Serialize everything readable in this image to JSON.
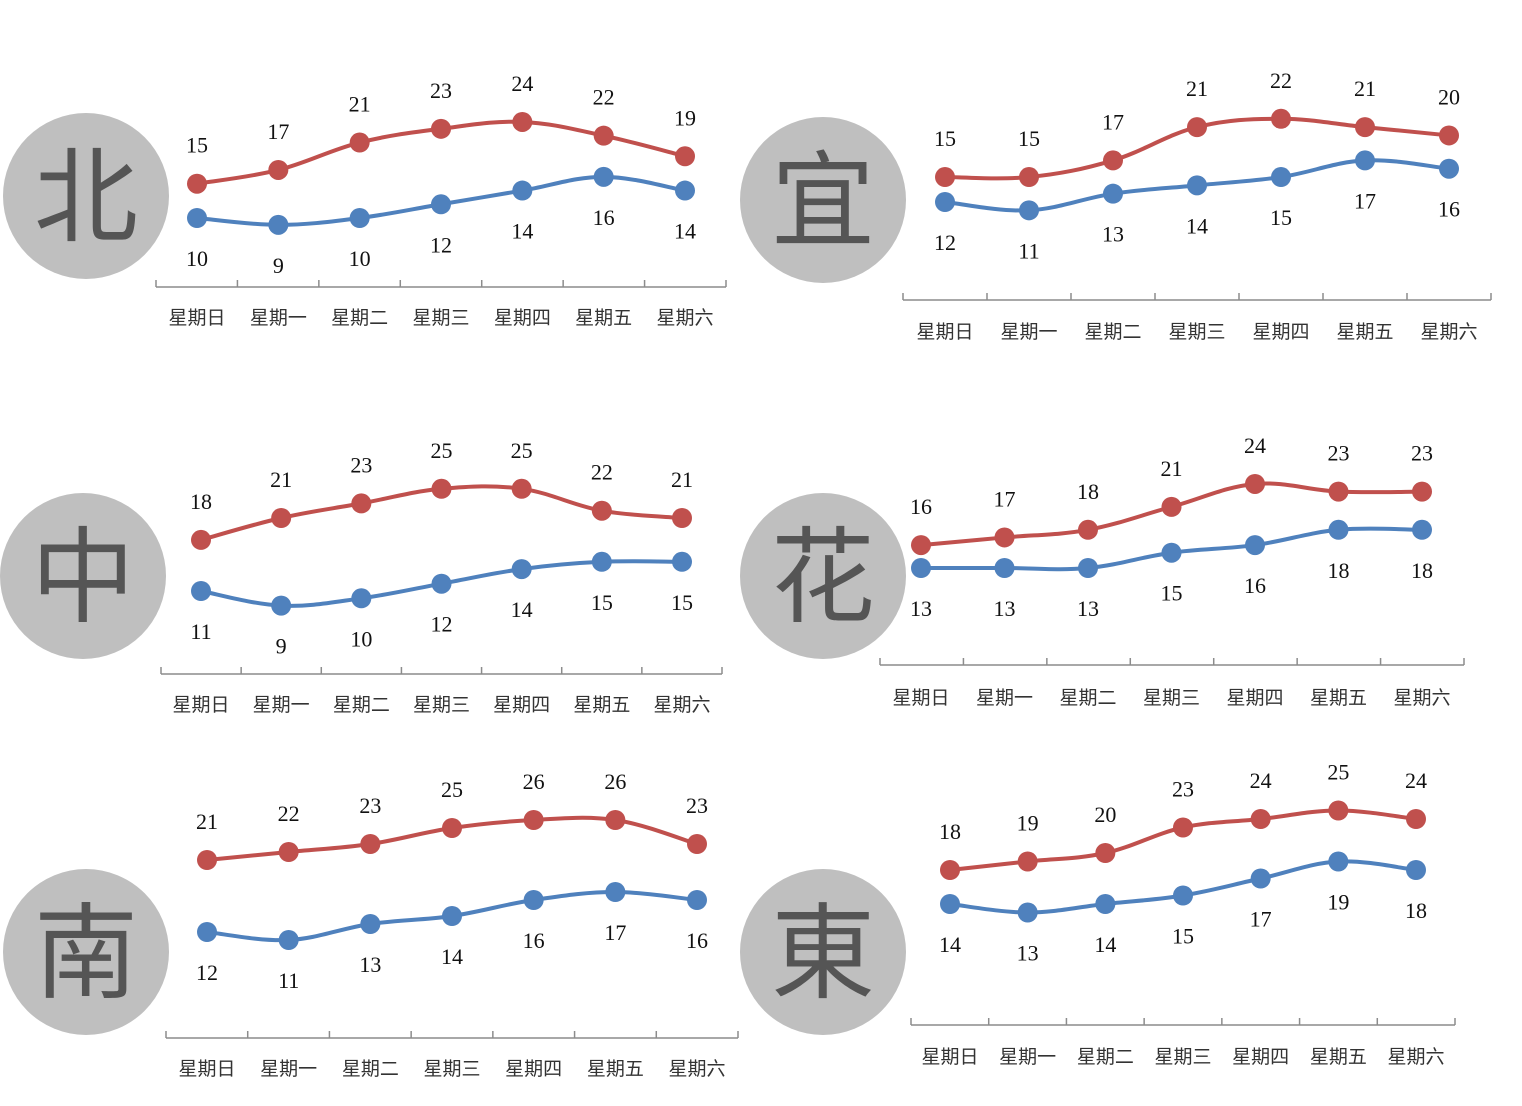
{
  "colors": {
    "high": "#C0504D",
    "low": "#4F81BD",
    "badge": "#BFBFBF",
    "badge_text": "#555555"
  },
  "chart_data": [
    {
      "type": "line",
      "region": "北",
      "categories": [
        "星期日",
        "星期一",
        "星期二",
        "星期三",
        "星期四",
        "星期五",
        "星期六"
      ],
      "series": [
        {
          "values": [
            15,
            17,
            21,
            23,
            24,
            22,
            19
          ]
        },
        {
          "values": [
            10,
            9,
            10,
            12,
            14,
            16,
            14
          ]
        }
      ]
    },
    {
      "type": "line",
      "region": "宜",
      "categories": [
        "星期日",
        "星期一",
        "星期二",
        "星期三",
        "星期四",
        "星期五",
        "星期六"
      ],
      "series": [
        {
          "values": [
            15,
            15,
            17,
            21,
            22,
            21,
            20
          ]
        },
        {
          "values": [
            12,
            11,
            13,
            14,
            15,
            17,
            16
          ]
        }
      ]
    },
    {
      "type": "line",
      "region": "中",
      "categories": [
        "星期日",
        "星期一",
        "星期二",
        "星期三",
        "星期四",
        "星期五",
        "星期六"
      ],
      "series": [
        {
          "values": [
            18,
            21,
            23,
            25,
            25,
            22,
            21
          ]
        },
        {
          "values": [
            11,
            9,
            10,
            12,
            14,
            15,
            15
          ]
        }
      ]
    },
    {
      "type": "line",
      "region": "花",
      "categories": [
        "星期日",
        "星期一",
        "星期二",
        "星期三",
        "星期四",
        "星期五",
        "星期六"
      ],
      "series": [
        {
          "values": [
            16,
            17,
            18,
            21,
            24,
            23,
            23
          ]
        },
        {
          "values": [
            13,
            13,
            13,
            15,
            16,
            18,
            18
          ]
        }
      ]
    },
    {
      "type": "line",
      "region": "南",
      "categories": [
        "星期日",
        "星期一",
        "星期二",
        "星期三",
        "星期四",
        "星期五",
        "星期六"
      ],
      "series": [
        {
          "values": [
            21,
            22,
            23,
            25,
            26,
            26,
            23
          ]
        },
        {
          "values": [
            12,
            11,
            13,
            14,
            16,
            17,
            16
          ]
        }
      ]
    },
    {
      "type": "line",
      "region": "東",
      "categories": [
        "星期日",
        "星期一",
        "星期二",
        "星期三",
        "星期四",
        "星期五",
        "星期六"
      ],
      "series": [
        {
          "values": [
            18,
            19,
            20,
            23,
            24,
            25,
            24
          ]
        },
        {
          "values": [
            14,
            13,
            14,
            15,
            17,
            19,
            18
          ]
        }
      ]
    }
  ]
}
